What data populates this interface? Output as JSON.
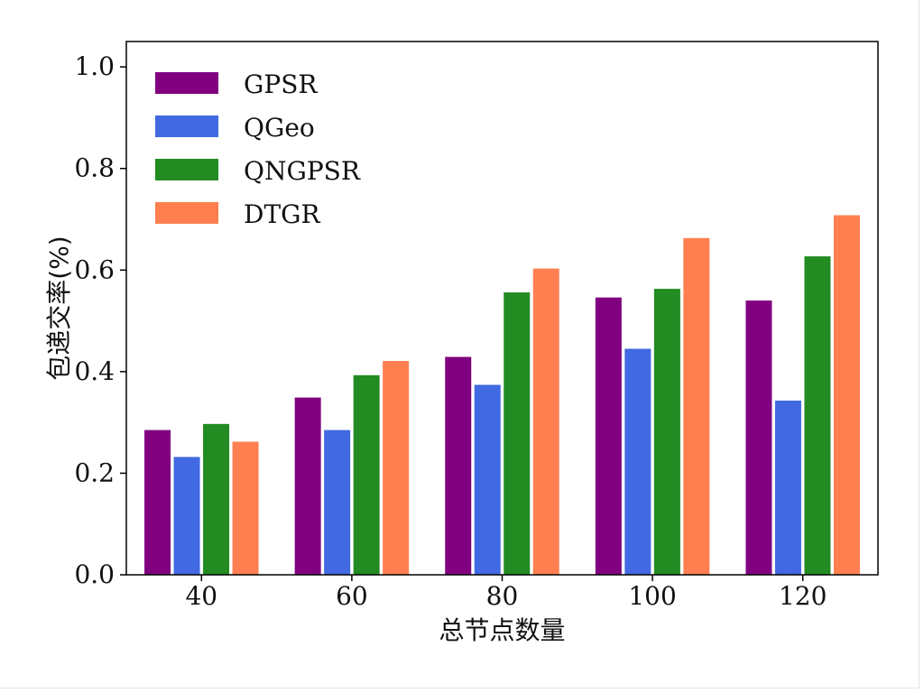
{
  "chart_data": {
    "type": "bar",
    "title": "",
    "xlabel": "总节点数量",
    "ylabel": "包递交率(%)",
    "categories": [
      "40",
      "60",
      "80",
      "100",
      "120"
    ],
    "ylim": [
      0,
      1.05
    ],
    "yticks": [
      "0.0",
      "0.2",
      "0.4",
      "0.6",
      "0.8",
      "1.0"
    ],
    "grid": false,
    "legend_position": "top-left",
    "series": [
      {
        "name": "GPSR",
        "color": "#800080",
        "values": [
          0.285,
          0.349,
          0.429,
          0.546,
          0.54
        ]
      },
      {
        "name": "QGeo",
        "color": "#4169e1",
        "values": [
          0.232,
          0.285,
          0.374,
          0.445,
          0.343
        ]
      },
      {
        "name": "QNGPSR",
        "color": "#228b22",
        "values": [
          0.297,
          0.393,
          0.556,
          0.563,
          0.627
        ]
      },
      {
        "name": "DTGR",
        "color": "#ff7f50",
        "values": [
          0.262,
          0.421,
          0.603,
          0.663,
          0.708
        ]
      }
    ]
  }
}
